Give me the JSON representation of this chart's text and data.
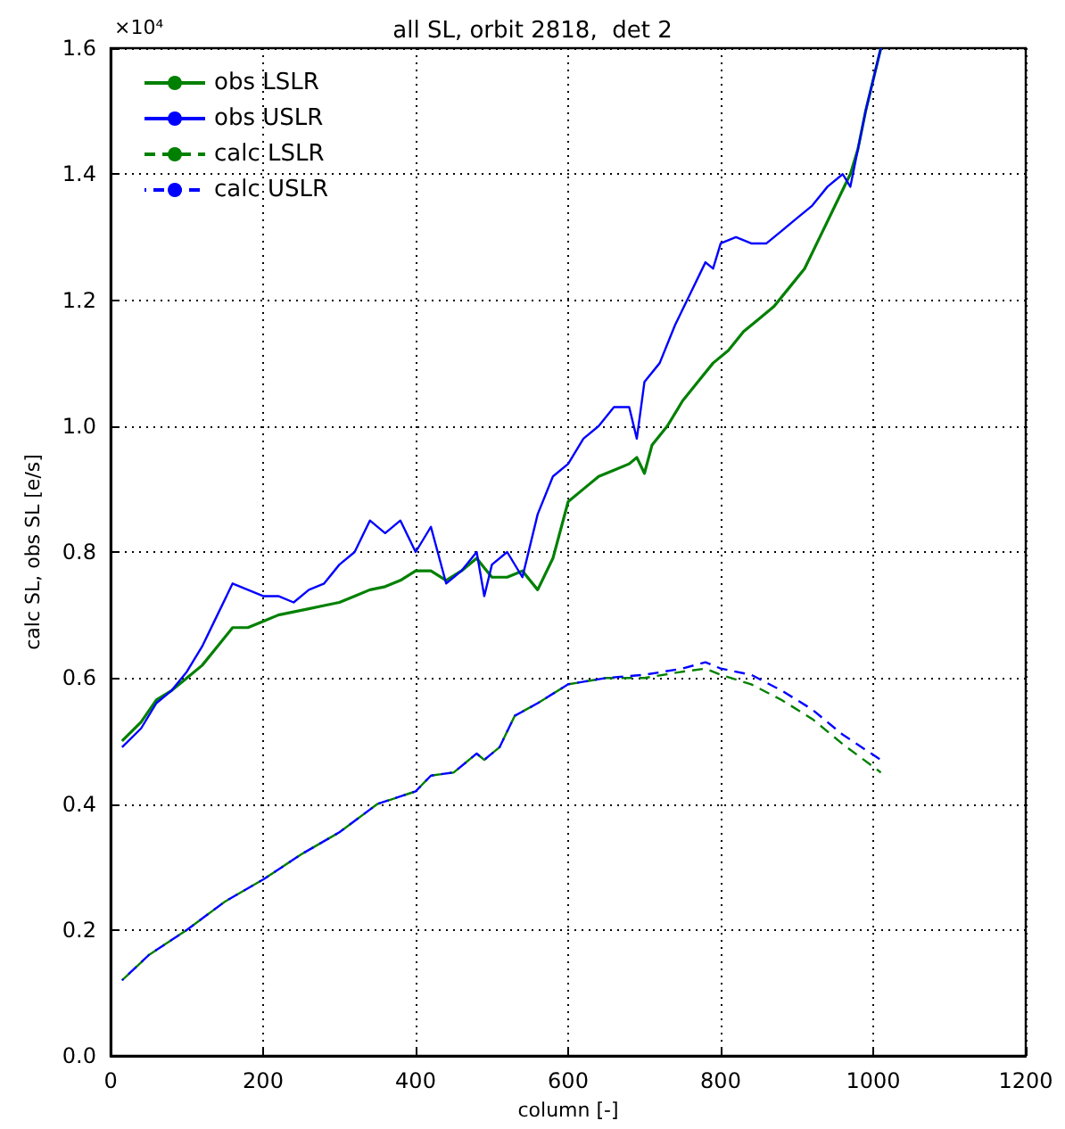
{
  "chart_data": {
    "type": "line",
    "title": "all SL, orbit 2818,  det 2",
    "xlabel": "column [-]",
    "ylabel": "calc SL, obs SL [e/s]",
    "annotations": [
      "×10⁴"
    ],
    "xlim": [
      0,
      1200
    ],
    "xticks": [
      0,
      200,
      400,
      600,
      800,
      1000,
      1200
    ],
    "ylim": [
      0,
      1.6
    ],
    "yticks": [
      {
        "value": 0,
        "label": "0.0"
      },
      {
        "value": 0.2,
        "label": "0.2"
      },
      {
        "value": 0.4,
        "label": "0.4"
      },
      {
        "value": 0.6,
        "label": "0.6"
      },
      {
        "value": 0.8,
        "label": "0.8"
      },
      {
        "value": 1.0,
        "label": "1.0"
      },
      {
        "value": 1.2,
        "label": "1.2"
      },
      {
        "value": 1.4,
        "label": "1.4"
      },
      {
        "value": 1.6,
        "label": "1.6"
      }
    ],
    "grid": true,
    "legend": "top left",
    "marker": "none",
    "series": [
      {
        "name": "obs LSLR",
        "color": "#008000",
        "line_style": "solid",
        "x": [
          15,
          40,
          60,
          80,
          100,
          120,
          140,
          160,
          180,
          200,
          220,
          240,
          260,
          280,
          300,
          320,
          340,
          360,
          380,
          400,
          420,
          440,
          460,
          480,
          490,
          500,
          520,
          540,
          560,
          580,
          600,
          620,
          640,
          660,
          680,
          690,
          700,
          710,
          730,
          750,
          770,
          790,
          810,
          830,
          850,
          870,
          890,
          910,
          930,
          950,
          970,
          980,
          990,
          1000,
          1010
        ],
        "values": [
          0.5,
          0.53,
          0.565,
          0.58,
          0.6,
          0.62,
          0.65,
          0.68,
          0.68,
          0.69,
          0.7,
          0.705,
          0.71,
          0.715,
          0.72,
          0.73,
          0.74,
          0.745,
          0.755,
          0.77,
          0.77,
          0.755,
          0.77,
          0.79,
          0.775,
          0.76,
          0.76,
          0.77,
          0.74,
          0.79,
          0.88,
          0.9,
          0.92,
          0.93,
          0.94,
          0.95,
          0.925,
          0.97,
          1.0,
          1.04,
          1.07,
          1.1,
          1.12,
          1.15,
          1.17,
          1.19,
          1.22,
          1.25,
          1.3,
          1.35,
          1.4,
          1.44,
          1.5,
          1.55,
          1.6
        ]
      },
      {
        "name": "obs USLR",
        "color": "#0000ff",
        "line_style": "solid",
        "x": [
          15,
          40,
          60,
          80,
          100,
          120,
          140,
          160,
          180,
          200,
          220,
          240,
          260,
          280,
          300,
          320,
          340,
          360,
          380,
          400,
          420,
          440,
          460,
          480,
          490,
          500,
          520,
          540,
          560,
          580,
          600,
          620,
          640,
          660,
          680,
          690,
          700,
          720,
          740,
          760,
          780,
          790,
          800,
          820,
          840,
          860,
          880,
          900,
          920,
          940,
          960,
          970,
          980,
          990,
          1000,
          1010
        ],
        "values": [
          0.49,
          0.52,
          0.56,
          0.58,
          0.61,
          0.65,
          0.7,
          0.75,
          0.74,
          0.73,
          0.73,
          0.72,
          0.74,
          0.75,
          0.78,
          0.8,
          0.85,
          0.83,
          0.85,
          0.8,
          0.84,
          0.75,
          0.77,
          0.8,
          0.73,
          0.78,
          0.8,
          0.76,
          0.86,
          0.92,
          0.94,
          0.98,
          1.0,
          1.03,
          1.03,
          0.98,
          1.07,
          1.1,
          1.16,
          1.21,
          1.26,
          1.25,
          1.29,
          1.3,
          1.29,
          1.29,
          1.31,
          1.33,
          1.35,
          1.38,
          1.4,
          1.38,
          1.44,
          1.5,
          1.55,
          1.6
        ]
      },
      {
        "name": "calc LSLR",
        "color": "#008000",
        "line_style": "dashed",
        "x": [
          15,
          50,
          100,
          150,
          200,
          250,
          300,
          350,
          400,
          420,
          450,
          480,
          490,
          510,
          530,
          560,
          600,
          650,
          700,
          750,
          780,
          800,
          840,
          880,
          920,
          960,
          1010
        ],
        "values": [
          0.12,
          0.16,
          0.2,
          0.245,
          0.28,
          0.32,
          0.355,
          0.4,
          0.42,
          0.445,
          0.45,
          0.48,
          0.47,
          0.49,
          0.54,
          0.56,
          0.59,
          0.6,
          0.6,
          0.61,
          0.615,
          0.605,
          0.59,
          0.565,
          0.535,
          0.495,
          0.45
        ]
      },
      {
        "name": "calc USLR",
        "color": "#0000ff",
        "line_style": "dashed",
        "x": [
          15,
          50,
          100,
          150,
          200,
          250,
          300,
          350,
          400,
          420,
          450,
          480,
          490,
          510,
          530,
          560,
          600,
          650,
          700,
          750,
          780,
          800,
          840,
          880,
          920,
          960,
          1010
        ],
        "values": [
          0.12,
          0.16,
          0.2,
          0.245,
          0.28,
          0.32,
          0.355,
          0.4,
          0.42,
          0.445,
          0.45,
          0.48,
          0.47,
          0.49,
          0.54,
          0.56,
          0.59,
          0.6,
          0.605,
          0.615,
          0.625,
          0.615,
          0.605,
          0.58,
          0.55,
          0.51,
          0.47
        ]
      }
    ]
  }
}
